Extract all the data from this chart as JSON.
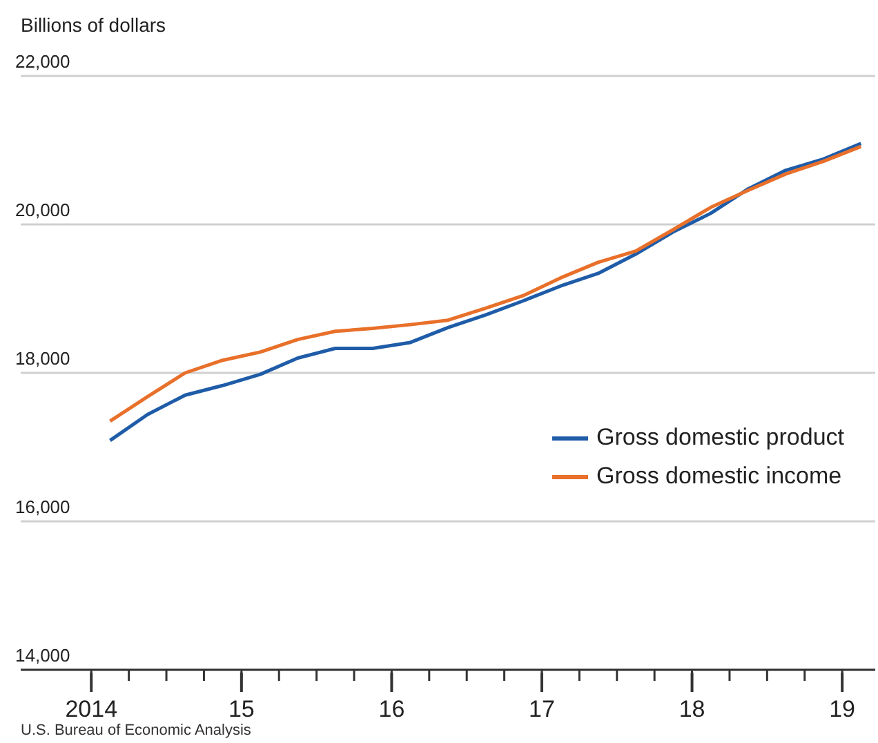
{
  "chart_data": {
    "type": "line",
    "ylabel": "Billions of dollars",
    "x": [
      2014.125,
      2014.375,
      2014.625,
      2014.875,
      2015.125,
      2015.375,
      2015.625,
      2015.875,
      2016.125,
      2016.375,
      2016.625,
      2016.875,
      2017.125,
      2017.375,
      2017.625,
      2017.875,
      2018.125,
      2018.375,
      2018.625,
      2018.875,
      2019.125
    ],
    "series": [
      {
        "name": "Gross domestic product",
        "color": "#1f5ca8",
        "values": [
          17090,
          17440,
          17700,
          17830,
          17980,
          18200,
          18330,
          18330,
          18410,
          18610,
          18780,
          18970,
          19170,
          19340,
          19600,
          19900,
          20150,
          20480,
          20730,
          20880,
          21090
        ]
      },
      {
        "name": "Gross domestic income",
        "color": "#e8702a",
        "values": [
          17350,
          17680,
          18000,
          18170,
          18280,
          18450,
          18560,
          18600,
          18650,
          18710,
          18870,
          19040,
          19280,
          19490,
          19640,
          19930,
          20230,
          20460,
          20680,
          20850,
          21050
        ]
      }
    ],
    "xlim": [
      2013.53,
      2019.22
    ],
    "xticks": [
      {
        "value": 2014,
        "label": "2014"
      },
      {
        "value": 2014.25,
        "label": null
      },
      {
        "value": 2014.5,
        "label": null
      },
      {
        "value": 2014.75,
        "label": null
      },
      {
        "value": 2015,
        "label": "15"
      },
      {
        "value": 2015.25,
        "label": null
      },
      {
        "value": 2015.5,
        "label": null
      },
      {
        "value": 2015.75,
        "label": null
      },
      {
        "value": 2016,
        "label": "16"
      },
      {
        "value": 2016.25,
        "label": null
      },
      {
        "value": 2016.5,
        "label": null
      },
      {
        "value": 2016.75,
        "label": null
      },
      {
        "value": 2017,
        "label": "17"
      },
      {
        "value": 2017.25,
        "label": null
      },
      {
        "value": 2017.5,
        "label": null
      },
      {
        "value": 2017.75,
        "label": null
      },
      {
        "value": 2018,
        "label": "18"
      },
      {
        "value": 2018.25,
        "label": null
      },
      {
        "value": 2018.5,
        "label": null
      },
      {
        "value": 2018.75,
        "label": null
      },
      {
        "value": 2019,
        "label": "19"
      }
    ],
    "ylim": [
      14000,
      22000
    ],
    "yticks": [
      {
        "value": 14000,
        "label": "14,000"
      },
      {
        "value": 16000,
        "label": "16,000"
      },
      {
        "value": 18000,
        "label": "18,000"
      },
      {
        "value": 20000,
        "label": "20,000"
      },
      {
        "value": 22000,
        "label": "22,000"
      }
    ],
    "grid": "y",
    "legend": "right",
    "marker": "none",
    "line_style": "solid",
    "annotations": [
      "U.S. Bureau of Economic Analysis"
    ]
  }
}
